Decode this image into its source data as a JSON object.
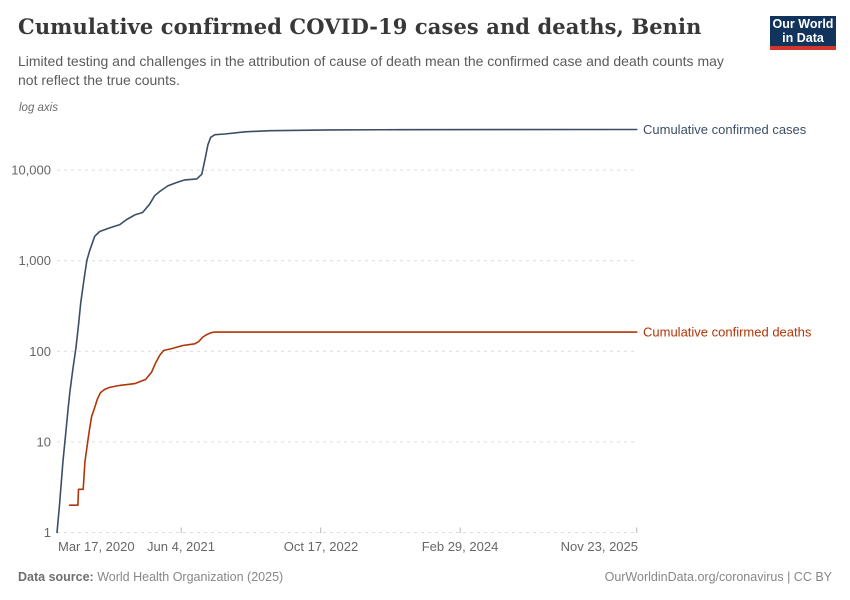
{
  "header": {
    "title": "Cumulative confirmed COVID-19 cases and deaths, Benin",
    "subtitle": "Limited testing and challenges in the attribution of cause of death mean the confirmed case and death counts may not reflect the true counts.",
    "logo": {
      "line1": "Our World",
      "line2": "in Data",
      "bg_color": "#12335C",
      "bar_color": "#D4362C"
    }
  },
  "chart": {
    "axis_note": "log axis",
    "y_ticks": [
      "10,000",
      "1,000",
      "100",
      "10",
      "1"
    ],
    "x_ticks": [
      "Mar 17, 2020",
      "Jun 4, 2021",
      "Oct 17, 2022",
      "Feb 29, 2024",
      "Nov 23, 2025"
    ]
  },
  "chart_data": {
    "type": "line",
    "title": "Cumulative confirmed COVID-19 cases and deaths, Benin",
    "x_axis": {
      "type": "date",
      "min": "2020-03-16",
      "max": "2025-11-23",
      "tick_dates": [
        "2020-03-17",
        "2021-06-04",
        "2022-10-17",
        "2024-02-29",
        "2025-11-23"
      ],
      "tick_labels": [
        "Mar 17, 2020",
        "Jun 4, 2021",
        "Oct 17, 2022",
        "Feb 29, 2024",
        "Nov 23, 2025"
      ]
    },
    "y_axis": {
      "type": "log",
      "note": "log axis",
      "min": 1,
      "max": 40000,
      "tick_values": [
        10000,
        1000,
        100,
        10,
        1
      ],
      "tick_labels": [
        "10,000",
        "1,000",
        "100",
        "10",
        "1"
      ],
      "grid": true
    },
    "legend_position": "right-of-line-end",
    "series": [
      {
        "name": "Cumulative confirmed cases",
        "color": "#3C4E66",
        "final_value": 28036,
        "points": [
          [
            "2020-03-16",
            1
          ],
          [
            "2020-03-25",
            2
          ],
          [
            "2020-04-06",
            6
          ],
          [
            "2020-04-17",
            13
          ],
          [
            "2020-04-24",
            22
          ],
          [
            "2020-05-01",
            35
          ],
          [
            "2020-05-12",
            64
          ],
          [
            "2020-05-23",
            110
          ],
          [
            "2020-06-02",
            210
          ],
          [
            "2020-06-09",
            340
          ],
          [
            "2020-06-20",
            600
          ],
          [
            "2020-07-01",
            1000
          ],
          [
            "2020-07-11",
            1285
          ],
          [
            "2020-07-29",
            1860
          ],
          [
            "2020-08-16",
            2100
          ],
          [
            "2020-09-21",
            2300
          ],
          [
            "2020-10-27",
            2500
          ],
          [
            "2020-11-21",
            2850
          ],
          [
            "2020-12-20",
            3200
          ],
          [
            "2021-01-17",
            3400
          ],
          [
            "2021-02-11",
            4200
          ],
          [
            "2021-03-01",
            5200
          ],
          [
            "2021-03-19",
            5800
          ],
          [
            "2021-04-17",
            6700
          ],
          [
            "2021-05-19",
            7300
          ],
          [
            "2021-06-17",
            7800
          ],
          [
            "2021-07-30",
            8000
          ],
          [
            "2021-08-17",
            9000
          ],
          [
            "2021-08-28",
            13000
          ],
          [
            "2021-09-08",
            19000
          ],
          [
            "2021-09-18",
            23000
          ],
          [
            "2021-10-03",
            24600
          ],
          [
            "2021-11-08",
            25000
          ],
          [
            "2022-01-19",
            26500
          ],
          [
            "2022-04-19",
            27200
          ],
          [
            "2022-11-20",
            27800
          ],
          [
            "2023-07-30",
            27900
          ],
          [
            "2024-07-24",
            28000
          ],
          [
            "2025-11-23",
            28036
          ]
        ]
      },
      {
        "name": "Cumulative confirmed deaths",
        "color": "#B13507",
        "final_value": 163,
        "points": [
          [
            "2020-04-30",
            2
          ],
          [
            "2020-05-30",
            2
          ],
          [
            "2020-06-01",
            3
          ],
          [
            "2020-06-18",
            3
          ],
          [
            "2020-06-24",
            6
          ],
          [
            "2020-07-04",
            10
          ],
          [
            "2020-07-11",
            14
          ],
          [
            "2020-07-18",
            19
          ],
          [
            "2020-07-29",
            24
          ],
          [
            "2020-08-08",
            30
          ],
          [
            "2020-08-19",
            35
          ],
          [
            "2020-09-03",
            38
          ],
          [
            "2020-09-21",
            40
          ],
          [
            "2020-10-27",
            42
          ],
          [
            "2020-12-20",
            44
          ],
          [
            "2021-01-28",
            49
          ],
          [
            "2021-02-18",
            59
          ],
          [
            "2021-03-05",
            75
          ],
          [
            "2021-03-19",
            90
          ],
          [
            "2021-04-02",
            102
          ],
          [
            "2021-05-01",
            107
          ],
          [
            "2021-06-10",
            116
          ],
          [
            "2021-07-23",
            121
          ],
          [
            "2021-08-06",
            128
          ],
          [
            "2021-08-21",
            144
          ],
          [
            "2021-09-04",
            153
          ],
          [
            "2021-09-18",
            160
          ],
          [
            "2021-09-29",
            163
          ],
          [
            "2025-11-23",
            163
          ]
        ]
      }
    ]
  },
  "footer": {
    "source_label": "Data source:",
    "source_value": " World Health Organization (2025)",
    "attribution": "OurWorldinData.org/coronavirus | CC BY"
  }
}
